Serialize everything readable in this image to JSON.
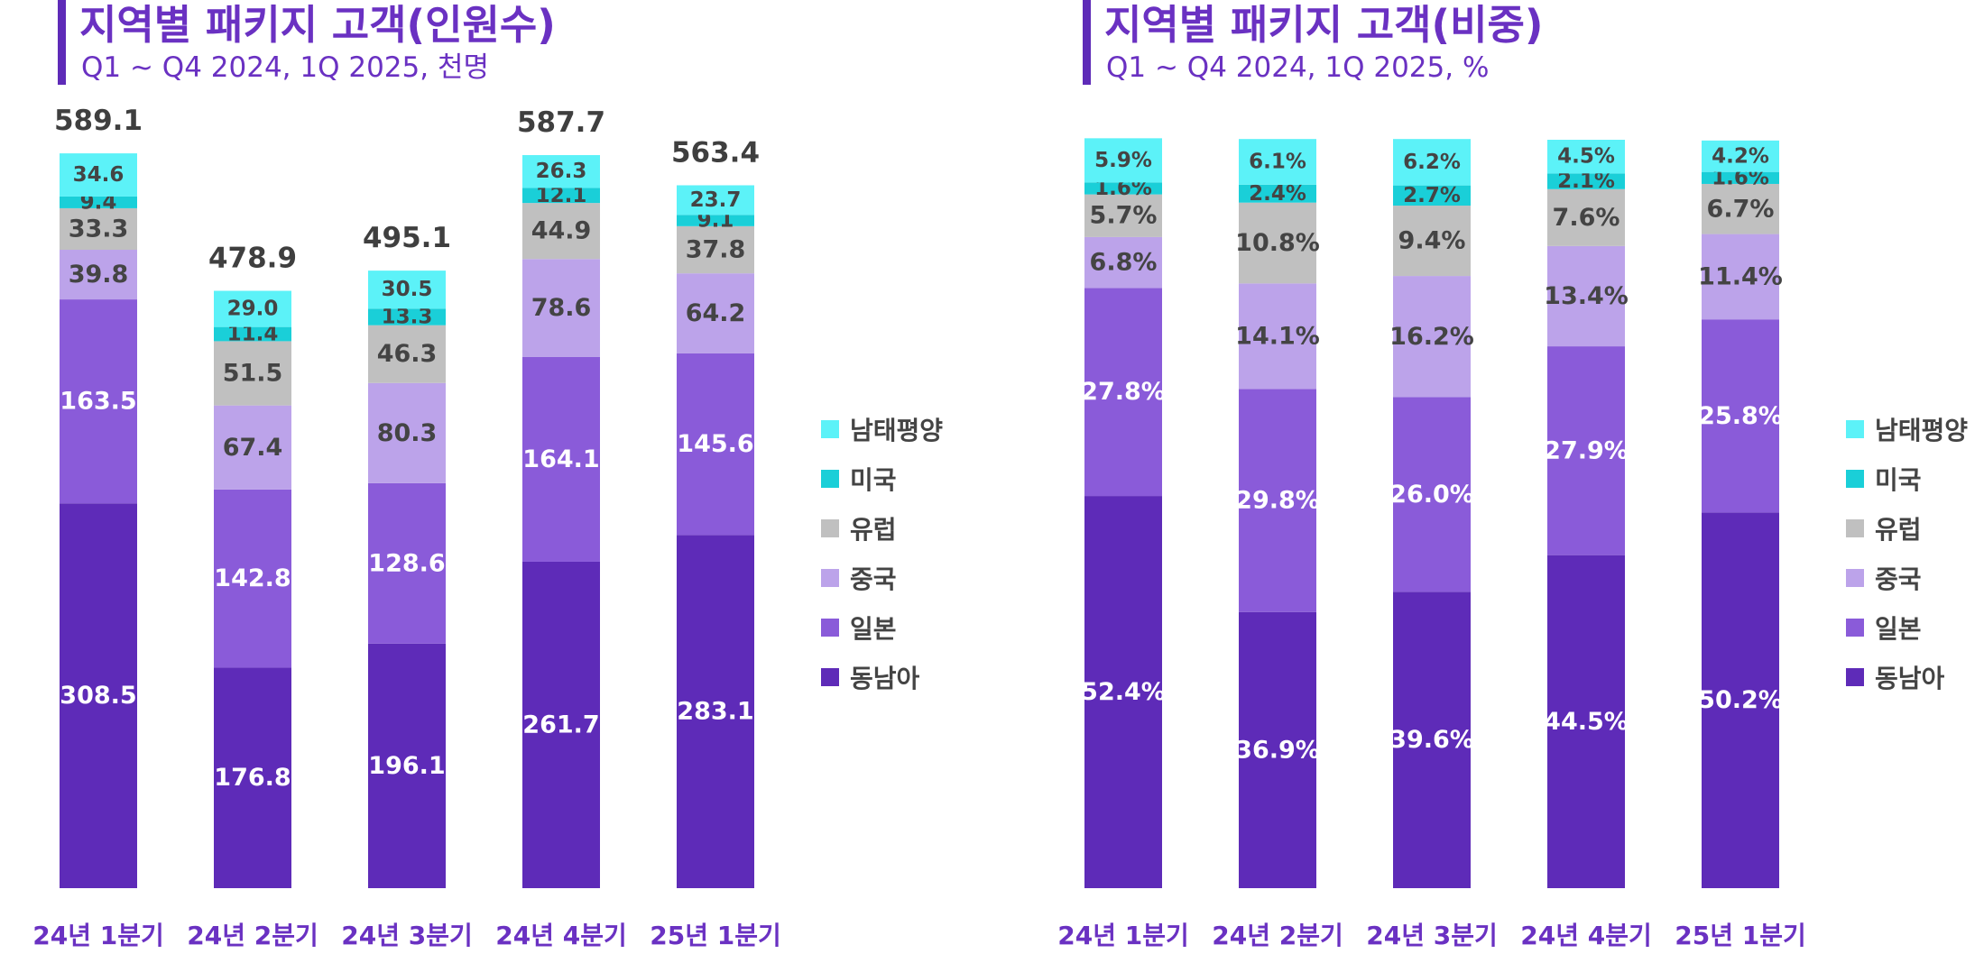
{
  "colors": {
    "title": "#6a31c2",
    "axis_label": "#6a31c2",
    "total_label": "#3f3f3f",
    "dark_label": "#444444",
    "light_label": "#ffffff",
    "segments": [
      "#5e2bb8",
      "#8a5bd9",
      "#bca3ea",
      "#c0c0c0",
      "#1acfd8",
      "#5cf2f8"
    ]
  },
  "chart_data": [
    {
      "type": "bar",
      "stacked": true,
      "title": "지역별 패키지 고객(인원수)",
      "subtitle": "Q1 ~ Q4 2024, 1Q 2025, 천명",
      "categories": [
        "24년 1분기",
        "24년 2분기",
        "24년 3분기",
        "24년 4분기",
        "25년 1분기"
      ],
      "series": [
        {
          "name": "동남아",
          "values": [
            308.5,
            176.8,
            196.1,
            261.7,
            283.1
          ]
        },
        {
          "name": "일본",
          "values": [
            163.5,
            142.8,
            128.6,
            164.1,
            145.6
          ]
        },
        {
          "name": "중국",
          "values": [
            39.8,
            67.4,
            80.3,
            78.6,
            64.2
          ]
        },
        {
          "name": "유럽",
          "values": [
            33.3,
            51.5,
            46.3,
            44.9,
            37.8
          ]
        },
        {
          "name": "미국",
          "values": [
            9.4,
            11.4,
            13.3,
            12.1,
            9.1
          ]
        },
        {
          "name": "남태평양",
          "values": [
            34.6,
            29.0,
            30.5,
            26.3,
            23.7
          ]
        }
      ],
      "labels": [
        [
          "308.5",
          "176.8",
          "196.1",
          "261.7",
          "283.1"
        ],
        [
          "163.5",
          "142.8",
          "128.6",
          "164.1",
          "145.6"
        ],
        [
          "39.8",
          "67.4",
          "80.3",
          "78.6",
          "64.2"
        ],
        [
          "33.3",
          "51.5",
          "46.3",
          "44.9",
          "37.8"
        ],
        [
          "9.4",
          "11.4",
          "13.3",
          "12.1",
          "9.1"
        ],
        [
          "34.6",
          "29.0",
          "30.5",
          "26.3",
          "23.7"
        ]
      ],
      "totals": [
        "589.1",
        "478.9",
        "495.1",
        "587.7",
        "563.4"
      ],
      "ylim": [
        0,
        600
      ],
      "legend": "right"
    },
    {
      "type": "bar",
      "stacked": true,
      "title": "지역별 패키지 고객(비중)",
      "subtitle": "Q1 ~ Q4 2024, 1Q 2025, %",
      "categories": [
        "24년 1분기",
        "24년 2분기",
        "24년 3분기",
        "24년 4분기",
        "25년 1분기"
      ],
      "series": [
        {
          "name": "동남아",
          "values": [
            52.4,
            36.9,
            39.6,
            44.5,
            50.2
          ]
        },
        {
          "name": "일본",
          "values": [
            27.8,
            29.8,
            26.0,
            27.9,
            25.8
          ]
        },
        {
          "name": "중국",
          "values": [
            6.8,
            14.1,
            16.2,
            13.4,
            11.4
          ]
        },
        {
          "name": "유럽",
          "values": [
            5.7,
            10.8,
            9.4,
            7.6,
            6.7
          ]
        },
        {
          "name": "미국",
          "values": [
            1.6,
            2.4,
            2.7,
            2.1,
            1.6
          ]
        },
        {
          "name": "남태평양",
          "values": [
            5.9,
            6.1,
            6.2,
            4.5,
            4.2
          ]
        }
      ],
      "labels": [
        [
          "52.4%",
          "36.9%",
          "39.6%",
          "44.5%",
          "50.2%"
        ],
        [
          "27.8%",
          "29.8%",
          "26.0%",
          "27.9%",
          "25.8%"
        ],
        [
          "6.8%",
          "14.1%",
          "16.2%",
          "13.4%",
          "11.4%"
        ],
        [
          "5.7%",
          "10.8%",
          "9.4%",
          "7.6%",
          "6.7%"
        ],
        [
          "1.6%",
          "2.4%",
          "2.7%",
          "2.1%",
          "1.6%"
        ],
        [
          "5.9%",
          "6.1%",
          "6.2%",
          "4.5%",
          "4.2%"
        ]
      ],
      "ylim": [
        0,
        100
      ],
      "legend": "right"
    }
  ]
}
